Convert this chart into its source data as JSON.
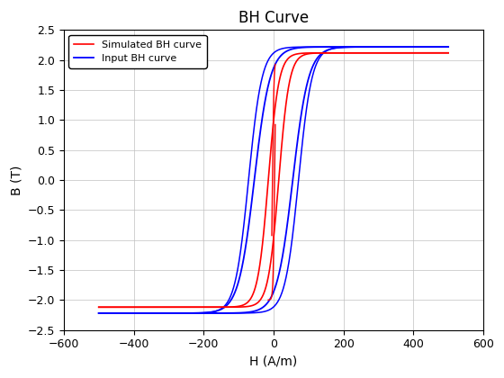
{
  "title": "BH Curve",
  "xlabel": "H (A/m)",
  "ylabel": "B (T)",
  "xlim": [
    -600,
    600
  ],
  "ylim": [
    -2.5,
    2.5
  ],
  "xticks": [
    -600,
    -400,
    -200,
    0,
    200,
    400,
    600
  ],
  "yticks": [
    -2.5,
    -2,
    -1.5,
    -1,
    -0.5,
    0,
    0.5,
    1,
    1.5,
    2,
    2.5
  ],
  "simulated_color": "#ff0000",
  "input_color": "#0000ff",
  "background_color": "#ffffff",
  "grid_color": "#c0c0c0",
  "legend_labels": [
    "Simulated BH curve",
    "Input BH curve"
  ],
  "Hsat": 500,
  "Bsat_sim": 2.12,
  "Bsat_inp": 2.22,
  "sim_scale": 30,
  "inp_scale": 45,
  "sim_Hc": 15,
  "inp_Hc": 55
}
